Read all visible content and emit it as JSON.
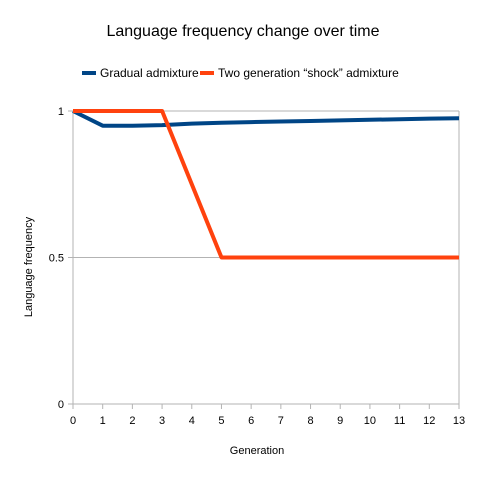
{
  "chart_data": {
    "type": "line",
    "title": "Language frequency change over time",
    "xlabel": "Generation",
    "ylabel": "Language frequency",
    "x": [
      0,
      1,
      2,
      3,
      4,
      5,
      6,
      7,
      8,
      9,
      10,
      11,
      12,
      13
    ],
    "xlim": [
      0,
      13
    ],
    "ylim": [
      0,
      1
    ],
    "y_ticks": [
      0,
      0.5,
      1
    ],
    "x_tick_labels": [
      "0",
      "1",
      "2",
      "3",
      "4",
      "5",
      "6",
      "7",
      "8",
      "9",
      "10",
      "11",
      "12",
      "13"
    ],
    "y_tick_labels": [
      "0",
      "0.5",
      "1"
    ],
    "grid": "horizontal major",
    "legend_position": "top",
    "series": [
      {
        "name": "Gradual admixture",
        "color": "#004586",
        "values": [
          1.0,
          0.95,
          0.95,
          0.952,
          0.957,
          0.96,
          0.962,
          0.964,
          0.966,
          0.968,
          0.97,
          0.972,
          0.974,
          0.975
        ]
      },
      {
        "name": "Two generation “shock” admixture",
        "color": "#ff420e",
        "values": [
          1.0,
          1.0,
          1.0,
          1.0,
          0.75,
          0.5,
          0.5,
          0.5,
          0.5,
          0.5,
          0.5,
          0.5,
          0.5,
          0.5
        ]
      }
    ]
  }
}
